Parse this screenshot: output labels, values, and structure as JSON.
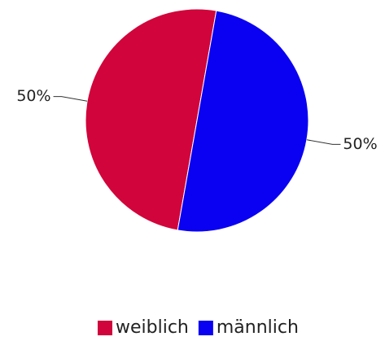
{
  "chart_data": {
    "type": "pie",
    "categories": [
      "weiblich",
      "männlich"
    ],
    "values": [
      50,
      50
    ],
    "value_labels": [
      "50%",
      "50%"
    ],
    "colors": [
      "#d1043b",
      "#0a00f2"
    ],
    "legend": "bottom"
  }
}
